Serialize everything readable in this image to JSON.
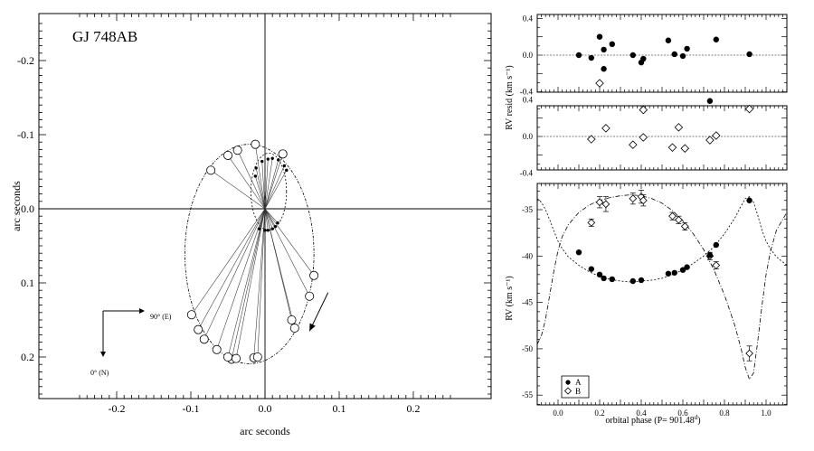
{
  "chart_data": [
    {
      "type": "scatter",
      "panel": "astrometric-orbit",
      "title": "GJ 748AB",
      "xlabel": "arc seconds",
      "ylabel": "arc seconds",
      "xlim": [
        -0.25,
        0.25
      ],
      "ylim": [
        -0.25,
        0.25
      ],
      "y_inverted": true,
      "xticks": [
        "-0.2",
        "-0.1",
        "0.0",
        "0.1",
        "0.2"
      ],
      "yticks": [
        "-0.2",
        "-0.1",
        "0.0",
        "0.1",
        "0.2"
      ],
      "grid": false,
      "orbit_B": {
        "center": [
          -0.021,
          0.061
        ],
        "semi_x": 0.087,
        "semi_y": 0.148,
        "points": [
          [
            -0.073,
            -0.052
          ],
          [
            -0.05,
            -0.072
          ],
          [
            -0.037,
            -0.079
          ],
          [
            -0.013,
            -0.087
          ],
          [
            0.024,
            -0.074
          ],
          [
            0.066,
            0.09
          ],
          [
            0.06,
            0.118
          ],
          [
            0.04,
            0.161
          ],
          [
            0.036,
            0.15
          ],
          [
            -0.015,
            0.201
          ],
          [
            -0.01,
            0.2
          ],
          [
            -0.045,
            0.203
          ],
          [
            -0.039,
            0.202
          ],
          [
            -0.05,
            0.2
          ],
          [
            -0.065,
            0.19
          ],
          [
            -0.082,
            0.176
          ],
          [
            -0.09,
            0.163
          ],
          [
            -0.099,
            0.143
          ]
        ]
      },
      "orbit_A": {
        "center": [
          0.005,
          -0.023
        ],
        "semi_x": 0.024,
        "semi_y": 0.052,
        "points": [
          [
            0.029,
            -0.052
          ],
          [
            0.026,
            -0.058
          ],
          [
            0.018,
            -0.066
          ],
          [
            0.01,
            -0.068
          ],
          [
            0.004,
            -0.067
          ],
          [
            -0.004,
            -0.064
          ],
          [
            -0.012,
            -0.055
          ],
          [
            -0.013,
            -0.044
          ],
          [
            -0.008,
            0.027
          ],
          [
            0.0,
            0.029
          ],
          [
            0.004,
            0.029
          ],
          [
            0.01,
            0.027
          ],
          [
            0.014,
            0.024
          ],
          [
            0.017,
            0.019
          ]
        ]
      },
      "motion_arrow": {
        "from": [
          0.085,
          0.113
        ],
        "to": [
          0.06,
          0.165
        ]
      },
      "compass": {
        "east_label": "90° (E)",
        "north_label": "0° (N)"
      }
    },
    {
      "type": "scatter",
      "panel": "rv-residuals-A",
      "ylabel": "RV resid (km s⁻¹)",
      "ylim": [
        -0.6,
        0.6
      ],
      "yticks": [
        "0.4",
        "0.0",
        "-0.4"
      ],
      "xlim": [
        -0.1,
        1.1
      ],
      "zero_line": true,
      "x": [
        0.1,
        0.16,
        0.2,
        0.22,
        0.22,
        0.26,
        0.36,
        0.4,
        0.41,
        0.53,
        0.56,
        0.6,
        0.62,
        0.73,
        0.76,
        0.92
      ],
      "y": [
        0.0,
        -0.03,
        0.2,
        0.06,
        -0.15,
        0.12,
        0.0,
        -0.08,
        -0.04,
        0.16,
        0.01,
        -0.01,
        0.07,
        -0.5,
        0.17,
        0.01
      ]
    },
    {
      "type": "scatter",
      "panel": "rv-residuals-B",
      "ylim": [
        -0.6,
        0.6
      ],
      "yticks": [
        "0.4",
        "0.0",
        "-0.4"
      ],
      "xlim": [
        -0.1,
        1.1
      ],
      "zero_line": true,
      "x": [
        0.16,
        0.2,
        0.23,
        0.36,
        0.41,
        0.41,
        0.55,
        0.58,
        0.61,
        0.73,
        0.76,
        0.92
      ],
      "y": [
        -0.03,
        0.58,
        0.09,
        -0.09,
        0.29,
        -0.01,
        -0.12,
        0.1,
        -0.13,
        -0.04,
        0.01,
        0.3
      ]
    },
    {
      "type": "line",
      "panel": "radial-velocity",
      "xlabel": "orbital phase (P= 901.48",
      "xlabel_sup": "d",
      "xlabel_close": ")",
      "ylabel": "RV (km s⁻¹)",
      "xlim": [
        -0.1,
        1.1
      ],
      "ylim": [
        -55,
        -32
      ],
      "xticks": [
        "0.0",
        "0.2",
        "0.4",
        "0.6",
        "0.8",
        "1.0"
      ],
      "yticks": [
        "-35",
        "-40",
        "-45",
        "-50",
        "-55"
      ],
      "legend": {
        "position": "bottom-left",
        "entries": [
          "A",
          "B"
        ]
      },
      "series": [
        {
          "name": "A",
          "marker": "filled-circle",
          "x": [
            0.1,
            0.16,
            0.2,
            0.22,
            0.26,
            0.36,
            0.4,
            0.53,
            0.56,
            0.6,
            0.62,
            0.73,
            0.76,
            0.92
          ],
          "y": [
            -39.6,
            -41.4,
            -42.0,
            -42.4,
            -42.5,
            -42.7,
            -42.6,
            -41.9,
            -41.8,
            -41.5,
            -41.2,
            -39.9,
            -38.8,
            -34.0
          ]
        },
        {
          "name": "B",
          "marker": "open-diamond",
          "x": [
            0.16,
            0.2,
            0.23,
            0.36,
            0.4,
            0.41,
            0.55,
            0.58,
            0.61,
            0.73,
            0.76,
            0.92
          ],
          "y": [
            -36.4,
            -34.2,
            -34.4,
            -33.8,
            -33.6,
            -34.0,
            -35.7,
            -36.1,
            -36.8,
            -40.0,
            -41.0,
            -50.5
          ],
          "yerr": [
            0.4,
            0.6,
            0.8,
            0.6,
            0.7,
            0.6,
            0.4,
            0.4,
            0.4,
            0.4,
            0.4,
            0.8
          ]
        }
      ],
      "model_curve_A": [
        [
          -0.1,
          -33.8
        ],
        [
          -0.08,
          -34.2
        ],
        [
          -0.06,
          -35.0
        ],
        [
          -0.04,
          -36.1
        ],
        [
          -0.02,
          -37.3
        ],
        [
          0.0,
          -38.4
        ],
        [
          0.02,
          -39.2
        ],
        [
          0.05,
          -40.1
        ],
        [
          0.1,
          -41.0
        ],
        [
          0.15,
          -41.7
        ],
        [
          0.2,
          -42.2
        ],
        [
          0.25,
          -42.5
        ],
        [
          0.3,
          -42.7
        ],
        [
          0.35,
          -42.8
        ],
        [
          0.4,
          -42.7
        ],
        [
          0.45,
          -42.6
        ],
        [
          0.5,
          -42.4
        ],
        [
          0.55,
          -42.0
        ],
        [
          0.6,
          -41.5
        ],
        [
          0.65,
          -40.8
        ],
        [
          0.7,
          -40.0
        ],
        [
          0.75,
          -39.0
        ],
        [
          0.8,
          -37.6
        ],
        [
          0.85,
          -35.9
        ],
        [
          0.88,
          -34.6
        ],
        [
          0.9,
          -33.8
        ],
        [
          0.92,
          -33.6
        ],
        [
          0.94,
          -34.2
        ],
        [
          0.96,
          -35.6
        ],
        [
          0.98,
          -37.2
        ],
        [
          1.0,
          -38.4
        ],
        [
          1.02,
          -39.2
        ],
        [
          1.05,
          -40.1
        ],
        [
          1.1,
          -41.0
        ]
      ],
      "model_curve_B": [
        [
          -0.1,
          -49.5
        ],
        [
          -0.08,
          -48.6
        ],
        [
          -0.06,
          -46.8
        ],
        [
          -0.04,
          -44.2
        ],
        [
          -0.02,
          -41.6
        ],
        [
          0.0,
          -39.4
        ],
        [
          0.02,
          -37.9
        ],
        [
          0.05,
          -36.6
        ],
        [
          0.1,
          -35.3
        ],
        [
          0.15,
          -34.5
        ],
        [
          0.2,
          -34.0
        ],
        [
          0.25,
          -33.7
        ],
        [
          0.3,
          -33.5
        ],
        [
          0.35,
          -33.4
        ],
        [
          0.4,
          -33.5
        ],
        [
          0.45,
          -33.8
        ],
        [
          0.5,
          -34.3
        ],
        [
          0.55,
          -35.1
        ],
        [
          0.6,
          -36.2
        ],
        [
          0.65,
          -37.6
        ],
        [
          0.7,
          -39.3
        ],
        [
          0.75,
          -41.5
        ],
        [
          0.8,
          -44.2
        ],
        [
          0.85,
          -47.5
        ],
        [
          0.88,
          -50.0
        ],
        [
          0.9,
          -52.0
        ],
        [
          0.92,
          -53.3
        ],
        [
          0.94,
          -52.6
        ],
        [
          0.96,
          -49.2
        ],
        [
          0.98,
          -45.4
        ],
        [
          1.0,
          -42.0
        ],
        [
          1.02,
          -39.6
        ],
        [
          1.05,
          -37.2
        ],
        [
          1.1,
          -35.3
        ]
      ]
    }
  ]
}
